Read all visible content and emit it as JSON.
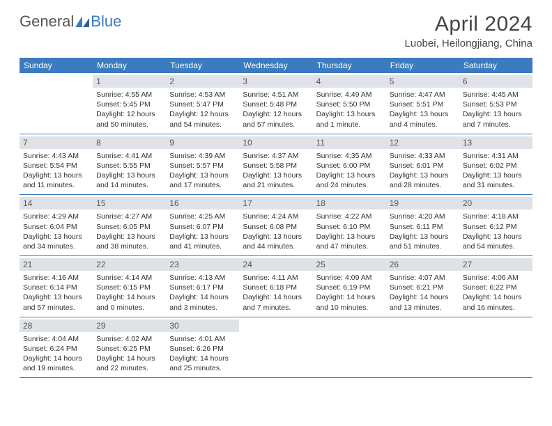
{
  "logo": {
    "text1": "General",
    "text2": "Blue"
  },
  "header": {
    "month_title": "April 2024",
    "location": "Luobei, Heilongjiang, China"
  },
  "colors": {
    "header_bg": "#3b7bbf",
    "header_text": "#ffffff",
    "daynum_bg": "#dfe3e7",
    "daynum_text": "#555555",
    "body_text": "#333333",
    "row_border": "#3b7bbf",
    "page_bg": "#ffffff"
  },
  "fonts": {
    "title_pt": 30,
    "location_pt": 15,
    "dayhead_pt": 12,
    "daynum_pt": 12,
    "body_pt": 10.5
  },
  "day_names": [
    "Sunday",
    "Monday",
    "Tuesday",
    "Wednesday",
    "Thursday",
    "Friday",
    "Saturday"
  ],
  "weeks": [
    [
      {
        "blank": true
      },
      {
        "n": "1",
        "sr": "Sunrise: 4:55 AM",
        "ss": "Sunset: 5:45 PM",
        "d1": "Daylight: 12 hours",
        "d2": "and 50 minutes."
      },
      {
        "n": "2",
        "sr": "Sunrise: 4:53 AM",
        "ss": "Sunset: 5:47 PM",
        "d1": "Daylight: 12 hours",
        "d2": "and 54 minutes."
      },
      {
        "n": "3",
        "sr": "Sunrise: 4:51 AM",
        "ss": "Sunset: 5:48 PM",
        "d1": "Daylight: 12 hours",
        "d2": "and 57 minutes."
      },
      {
        "n": "4",
        "sr": "Sunrise: 4:49 AM",
        "ss": "Sunset: 5:50 PM",
        "d1": "Daylight: 13 hours",
        "d2": "and 1 minute."
      },
      {
        "n": "5",
        "sr": "Sunrise: 4:47 AM",
        "ss": "Sunset: 5:51 PM",
        "d1": "Daylight: 13 hours",
        "d2": "and 4 minutes."
      },
      {
        "n": "6",
        "sr": "Sunrise: 4:45 AM",
        "ss": "Sunset: 5:53 PM",
        "d1": "Daylight: 13 hours",
        "d2": "and 7 minutes."
      }
    ],
    [
      {
        "n": "7",
        "sr": "Sunrise: 4:43 AM",
        "ss": "Sunset: 5:54 PM",
        "d1": "Daylight: 13 hours",
        "d2": "and 11 minutes."
      },
      {
        "n": "8",
        "sr": "Sunrise: 4:41 AM",
        "ss": "Sunset: 5:55 PM",
        "d1": "Daylight: 13 hours",
        "d2": "and 14 minutes."
      },
      {
        "n": "9",
        "sr": "Sunrise: 4:39 AM",
        "ss": "Sunset: 5:57 PM",
        "d1": "Daylight: 13 hours",
        "d2": "and 17 minutes."
      },
      {
        "n": "10",
        "sr": "Sunrise: 4:37 AM",
        "ss": "Sunset: 5:58 PM",
        "d1": "Daylight: 13 hours",
        "d2": "and 21 minutes."
      },
      {
        "n": "11",
        "sr": "Sunrise: 4:35 AM",
        "ss": "Sunset: 6:00 PM",
        "d1": "Daylight: 13 hours",
        "d2": "and 24 minutes."
      },
      {
        "n": "12",
        "sr": "Sunrise: 4:33 AM",
        "ss": "Sunset: 6:01 PM",
        "d1": "Daylight: 13 hours",
        "d2": "and 28 minutes."
      },
      {
        "n": "13",
        "sr": "Sunrise: 4:31 AM",
        "ss": "Sunset: 6:02 PM",
        "d1": "Daylight: 13 hours",
        "d2": "and 31 minutes."
      }
    ],
    [
      {
        "n": "14",
        "sr": "Sunrise: 4:29 AM",
        "ss": "Sunset: 6:04 PM",
        "d1": "Daylight: 13 hours",
        "d2": "and 34 minutes."
      },
      {
        "n": "15",
        "sr": "Sunrise: 4:27 AM",
        "ss": "Sunset: 6:05 PM",
        "d1": "Daylight: 13 hours",
        "d2": "and 38 minutes."
      },
      {
        "n": "16",
        "sr": "Sunrise: 4:25 AM",
        "ss": "Sunset: 6:07 PM",
        "d1": "Daylight: 13 hours",
        "d2": "and 41 minutes."
      },
      {
        "n": "17",
        "sr": "Sunrise: 4:24 AM",
        "ss": "Sunset: 6:08 PM",
        "d1": "Daylight: 13 hours",
        "d2": "and 44 minutes."
      },
      {
        "n": "18",
        "sr": "Sunrise: 4:22 AM",
        "ss": "Sunset: 6:10 PM",
        "d1": "Daylight: 13 hours",
        "d2": "and 47 minutes."
      },
      {
        "n": "19",
        "sr": "Sunrise: 4:20 AM",
        "ss": "Sunset: 6:11 PM",
        "d1": "Daylight: 13 hours",
        "d2": "and 51 minutes."
      },
      {
        "n": "20",
        "sr": "Sunrise: 4:18 AM",
        "ss": "Sunset: 6:12 PM",
        "d1": "Daylight: 13 hours",
        "d2": "and 54 minutes."
      }
    ],
    [
      {
        "n": "21",
        "sr": "Sunrise: 4:16 AM",
        "ss": "Sunset: 6:14 PM",
        "d1": "Daylight: 13 hours",
        "d2": "and 57 minutes."
      },
      {
        "n": "22",
        "sr": "Sunrise: 4:14 AM",
        "ss": "Sunset: 6:15 PM",
        "d1": "Daylight: 14 hours",
        "d2": "and 0 minutes."
      },
      {
        "n": "23",
        "sr": "Sunrise: 4:13 AM",
        "ss": "Sunset: 6:17 PM",
        "d1": "Daylight: 14 hours",
        "d2": "and 3 minutes."
      },
      {
        "n": "24",
        "sr": "Sunrise: 4:11 AM",
        "ss": "Sunset: 6:18 PM",
        "d1": "Daylight: 14 hours",
        "d2": "and 7 minutes."
      },
      {
        "n": "25",
        "sr": "Sunrise: 4:09 AM",
        "ss": "Sunset: 6:19 PM",
        "d1": "Daylight: 14 hours",
        "d2": "and 10 minutes."
      },
      {
        "n": "26",
        "sr": "Sunrise: 4:07 AM",
        "ss": "Sunset: 6:21 PM",
        "d1": "Daylight: 14 hours",
        "d2": "and 13 minutes."
      },
      {
        "n": "27",
        "sr": "Sunrise: 4:06 AM",
        "ss": "Sunset: 6:22 PM",
        "d1": "Daylight: 14 hours",
        "d2": "and 16 minutes."
      }
    ],
    [
      {
        "n": "28",
        "sr": "Sunrise: 4:04 AM",
        "ss": "Sunset: 6:24 PM",
        "d1": "Daylight: 14 hours",
        "d2": "and 19 minutes."
      },
      {
        "n": "29",
        "sr": "Sunrise: 4:02 AM",
        "ss": "Sunset: 6:25 PM",
        "d1": "Daylight: 14 hours",
        "d2": "and 22 minutes."
      },
      {
        "n": "30",
        "sr": "Sunrise: 4:01 AM",
        "ss": "Sunset: 6:26 PM",
        "d1": "Daylight: 14 hours",
        "d2": "and 25 minutes."
      },
      {
        "blank": true
      },
      {
        "blank": true
      },
      {
        "blank": true
      },
      {
        "blank": true
      }
    ]
  ]
}
